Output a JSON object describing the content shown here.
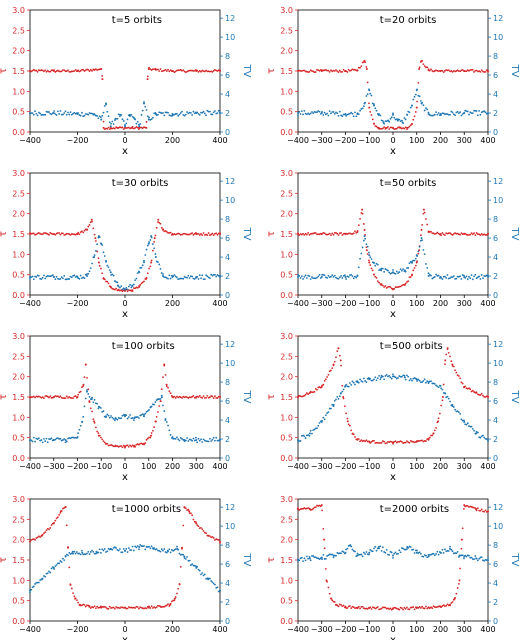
{
  "figure": {
    "left_color": "#d62728",
    "right_color": "#1f77b4",
    "left_axis_label": "τ",
    "right_axis_label": "TV"
  },
  "chart_data": [
    {
      "type": "scatter",
      "title": "t=5 orbits",
      "xlabel": "x",
      "xlim": [
        -400,
        400
      ],
      "ylim_left": [
        0,
        3
      ],
      "ylim_right": [
        0,
        12.86
      ],
      "xticks": [
        -400,
        -200,
        0,
        200,
        400
      ],
      "yticks_left": [
        0.0,
        0.5,
        1.0,
        1.5,
        2.0,
        2.5,
        3.0
      ],
      "yticks_right": [
        0,
        2,
        4,
        6,
        8,
        10,
        12
      ],
      "series": [
        {
          "axis": "left",
          "color": "#d62728",
          "x": [
            -400,
            -300,
            -200,
            -130,
            -100,
            -95,
            -90,
            -60,
            -30,
            0,
            30,
            60,
            90,
            95,
            100,
            130,
            200,
            300,
            400
          ],
          "y": [
            1.5,
            1.5,
            1.5,
            1.53,
            1.55,
            1.3,
            0.1,
            0.1,
            0.1,
            0.1,
            0.1,
            0.1,
            0.1,
            1.3,
            1.55,
            1.53,
            1.5,
            1.5,
            1.5
          ]
        },
        {
          "axis": "right",
          "color": "#1f77b4",
          "x": [
            -400,
            -300,
            -200,
            -130,
            -100,
            -80,
            -60,
            -40,
            -20,
            0,
            20,
            40,
            60,
            80,
            100,
            130,
            200,
            300,
            400
          ],
          "y": [
            2.0,
            2.0,
            1.9,
            1.9,
            1.3,
            3.0,
            0.6,
            1.4,
            1.8,
            0.6,
            1.8,
            1.4,
            0.6,
            3.0,
            1.3,
            1.9,
            1.9,
            2.0,
            2.0
          ]
        }
      ]
    },
    {
      "type": "scatter",
      "title": "t=20 orbits",
      "xlabel": "x",
      "xlim": [
        -400,
        400
      ],
      "ylim_left": [
        0,
        3
      ],
      "ylim_right": [
        0,
        12.86
      ],
      "xticks": [
        -400,
        -300,
        -200,
        -100,
        0,
        100,
        200,
        300,
        400
      ],
      "yticks_left": [
        0.0,
        0.5,
        1.0,
        1.5,
        2.0,
        2.5,
        3.0
      ],
      "yticks_right": [
        0,
        2,
        4,
        6,
        8,
        10,
        12
      ],
      "series": [
        {
          "axis": "left",
          "color": "#d62728",
          "x": [
            -400,
            -300,
            -200,
            -150,
            -120,
            -110,
            -100,
            -80,
            -60,
            -30,
            0,
            30,
            60,
            80,
            100,
            110,
            120,
            150,
            200,
            300,
            400
          ],
          "y": [
            1.5,
            1.5,
            1.5,
            1.52,
            1.75,
            1.55,
            0.6,
            0.2,
            0.1,
            0.1,
            0.1,
            0.1,
            0.1,
            0.2,
            0.6,
            1.55,
            1.75,
            1.52,
            1.5,
            1.5,
            1.5
          ]
        },
        {
          "axis": "right",
          "color": "#1f77b4",
          "x": [
            -400,
            -300,
            -200,
            -150,
            -120,
            -100,
            -80,
            -60,
            -40,
            -20,
            0,
            20,
            40,
            60,
            80,
            100,
            120,
            150,
            200,
            300,
            400
          ],
          "y": [
            2.0,
            2.0,
            1.9,
            1.9,
            3.0,
            4.4,
            2.8,
            1.8,
            1.0,
            1.2,
            1.8,
            1.2,
            1.0,
            1.8,
            2.8,
            4.4,
            3.0,
            1.9,
            1.9,
            2.0,
            2.0
          ]
        }
      ]
    },
    {
      "type": "scatter",
      "title": "t=30 orbits",
      "xlabel": "x",
      "xlim": [
        -400,
        400
      ],
      "ylim_left": [
        0,
        3
      ],
      "ylim_right": [
        0,
        12.86
      ],
      "xticks": [
        -400,
        -200,
        0,
        200,
        400
      ],
      "yticks_left": [
        0.0,
        0.5,
        1.0,
        1.5,
        2.0,
        2.5,
        3.0
      ],
      "yticks_right": [
        0,
        2,
        4,
        6,
        8,
        10,
        12
      ],
      "series": [
        {
          "axis": "left",
          "color": "#d62728",
          "x": [
            -400,
            -300,
            -200,
            -160,
            -140,
            -125,
            -110,
            -90,
            -60,
            -30,
            0,
            30,
            60,
            90,
            110,
            125,
            140,
            160,
            200,
            300,
            400
          ],
          "y": [
            1.5,
            1.5,
            1.5,
            1.6,
            1.85,
            1.4,
            0.8,
            0.4,
            0.2,
            0.12,
            0.1,
            0.12,
            0.2,
            0.4,
            0.8,
            1.4,
            1.85,
            1.6,
            1.5,
            1.5,
            1.5
          ]
        },
        {
          "axis": "right",
          "color": "#1f77b4",
          "x": [
            -400,
            -300,
            -200,
            -160,
            -130,
            -110,
            -100,
            -80,
            -60,
            -30,
            0,
            30,
            60,
            80,
            100,
            110,
            130,
            160,
            200,
            300,
            400
          ],
          "y": [
            1.9,
            1.9,
            1.9,
            2.0,
            4.0,
            6.2,
            5.4,
            3.6,
            2.4,
            1.0,
            0.6,
            1.0,
            2.4,
            3.6,
            5.4,
            6.2,
            4.0,
            2.0,
            1.9,
            1.9,
            1.9
          ]
        }
      ]
    },
    {
      "type": "scatter",
      "title": "t=50 orbits",
      "xlabel": "x",
      "xlim": [
        -400,
        400
      ],
      "ylim_left": [
        0,
        3
      ],
      "ylim_right": [
        0,
        12.86
      ],
      "xticks": [
        -400,
        -300,
        -200,
        -100,
        0,
        100,
        200,
        300,
        400
      ],
      "yticks_left": [
        0.0,
        0.5,
        1.0,
        1.5,
        2.0,
        2.5,
        3.0
      ],
      "yticks_right": [
        0,
        2,
        4,
        6,
        8,
        10,
        12
      ],
      "series": [
        {
          "axis": "left",
          "color": "#d62728",
          "x": [
            -400,
            -300,
            -200,
            -150,
            -130,
            -120,
            -110,
            -100,
            -80,
            -50,
            0,
            50,
            80,
            100,
            110,
            120,
            130,
            150,
            200,
            300,
            400
          ],
          "y": [
            1.5,
            1.5,
            1.5,
            1.55,
            2.1,
            1.6,
            1.1,
            0.8,
            0.5,
            0.25,
            0.15,
            0.25,
            0.5,
            0.8,
            1.1,
            1.6,
            2.1,
            1.55,
            1.5,
            1.5,
            1.5
          ]
        },
        {
          "axis": "right",
          "color": "#1f77b4",
          "x": [
            -400,
            -300,
            -200,
            -150,
            -120,
            -100,
            -80,
            -50,
            0,
            50,
            80,
            100,
            120,
            150,
            200,
            300,
            400
          ],
          "y": [
            1.9,
            1.9,
            1.9,
            2.0,
            6.2,
            4.2,
            3.4,
            2.6,
            2.4,
            2.6,
            3.4,
            4.2,
            6.0,
            2.0,
            1.9,
            1.9,
            1.9
          ]
        }
      ]
    },
    {
      "type": "scatter",
      "title": "t=100 orbits",
      "xlabel": "x",
      "xlim": [
        -400,
        400
      ],
      "ylim_left": [
        0,
        3
      ],
      "ylim_right": [
        0,
        12.86
      ],
      "xticks": [
        -400,
        -300,
        -200,
        -100,
        0,
        100,
        200,
        300,
        400
      ],
      "yticks_left": [
        0.0,
        0.5,
        1.0,
        1.5,
        2.0,
        2.5,
        3.0
      ],
      "yticks_right": [
        0,
        2,
        4,
        6,
        8,
        10,
        12
      ],
      "series": [
        {
          "axis": "left",
          "color": "#d62728",
          "x": [
            -400,
            -300,
            -200,
            -175,
            -165,
            -150,
            -130,
            -110,
            -80,
            -40,
            0,
            40,
            80,
            110,
            130,
            150,
            165,
            175,
            200,
            300,
            400
          ],
          "y": [
            1.5,
            1.5,
            1.5,
            1.8,
            2.3,
            1.4,
            0.9,
            0.55,
            0.35,
            0.3,
            0.28,
            0.3,
            0.35,
            0.55,
            0.9,
            1.4,
            2.3,
            1.8,
            1.5,
            1.5,
            1.5
          ]
        },
        {
          "axis": "right",
          "color": "#1f77b4",
          "x": [
            -400,
            -300,
            -250,
            -200,
            -180,
            -160,
            -140,
            -110,
            -80,
            -40,
            0,
            40,
            80,
            110,
            140,
            155,
            170,
            200,
            250,
            300,
            400
          ],
          "y": [
            1.9,
            1.9,
            1.9,
            2.2,
            3.8,
            7.0,
            6.2,
            5.4,
            4.4,
            4.2,
            4.4,
            4.2,
            4.4,
            5.4,
            6.2,
            6.4,
            4.0,
            2.2,
            1.9,
            1.9,
            1.9
          ]
        }
      ]
    },
    {
      "type": "scatter",
      "title": "t=500 orbits",
      "xlabel": "x",
      "xlim": [
        -400,
        400
      ],
      "ylim_left": [
        0,
        3
      ],
      "ylim_right": [
        0,
        12.86
      ],
      "xticks": [
        -400,
        -300,
        -200,
        -100,
        0,
        100,
        200,
        300,
        400
      ],
      "yticks_left": [
        0.0,
        0.5,
        1.0,
        1.5,
        2.0,
        2.5,
        3.0
      ],
      "yticks_right": [
        0,
        2,
        4,
        6,
        8,
        10,
        12
      ],
      "series": [
        {
          "axis": "left",
          "color": "#d62728",
          "x": [
            -400,
            -350,
            -300,
            -250,
            -230,
            -220,
            -210,
            -190,
            -170,
            -150,
            -100,
            0,
            100,
            150,
            170,
            190,
            210,
            220,
            230,
            250,
            300,
            350,
            400
          ],
          "y": [
            1.5,
            1.6,
            1.75,
            2.3,
            2.7,
            2.4,
            1.5,
            0.9,
            0.6,
            0.45,
            0.4,
            0.38,
            0.4,
            0.45,
            0.6,
            0.9,
            1.5,
            2.4,
            2.7,
            2.3,
            1.75,
            1.6,
            1.5
          ]
        },
        {
          "axis": "right",
          "color": "#1f77b4",
          "x": [
            -400,
            -350,
            -300,
            -250,
            -220,
            -200,
            -150,
            -100,
            -50,
            0,
            50,
            100,
            150,
            200,
            220,
            250,
            300,
            350,
            400
          ],
          "y": [
            1.9,
            2.6,
            3.8,
            5.6,
            6.8,
            7.6,
            8.0,
            8.3,
            8.5,
            8.6,
            8.5,
            8.3,
            8.0,
            7.6,
            6.8,
            5.6,
            3.8,
            2.6,
            1.9
          ]
        }
      ]
    },
    {
      "type": "scatter",
      "title": "t=1000 orbits",
      "xlabel": "x",
      "xlim": [
        -400,
        400
      ],
      "ylim_left": [
        0,
        3
      ],
      "ylim_right": [
        0,
        12.86
      ],
      "xticks": [
        -400,
        -200,
        0,
        200,
        400
      ],
      "yticks_left": [
        0.0,
        0.5,
        1.0,
        1.5,
        2.0,
        2.5,
        3.0
      ],
      "yticks_right": [
        0,
        2,
        4,
        6,
        8,
        10,
        12
      ],
      "series": [
        {
          "axis": "left",
          "color": "#d62728",
          "x": [
            -400,
            -350,
            -300,
            -270,
            -250,
            -240,
            -230,
            -210,
            -190,
            -150,
            -100,
            0,
            100,
            150,
            190,
            210,
            230,
            240,
            250,
            270,
            300,
            350,
            400
          ],
          "y": [
            1.95,
            2.1,
            2.4,
            2.7,
            2.8,
            1.8,
            0.9,
            0.55,
            0.4,
            0.35,
            0.33,
            0.33,
            0.33,
            0.35,
            0.4,
            0.55,
            0.9,
            1.8,
            2.8,
            2.7,
            2.4,
            2.1,
            1.95
          ]
        },
        {
          "axis": "right",
          "color": "#1f77b4",
          "x": [
            -400,
            -350,
            -300,
            -250,
            -220,
            -180,
            -120,
            -60,
            0,
            60,
            120,
            180,
            220,
            250,
            300,
            350,
            400
          ],
          "y": [
            3.2,
            4.4,
            5.6,
            6.8,
            7.3,
            7.2,
            7.3,
            7.6,
            7.4,
            7.8,
            7.6,
            7.4,
            7.6,
            6.8,
            5.6,
            4.4,
            3.2
          ]
        }
      ]
    },
    {
      "type": "scatter",
      "title": "t=2000 orbits",
      "xlabel": "x",
      "xlim": [
        -400,
        400
      ],
      "ylim_left": [
        0,
        3
      ],
      "ylim_right": [
        0,
        12.86
      ],
      "xticks": [
        -400,
        -300,
        -200,
        -100,
        0,
        100,
        200,
        300,
        400
      ],
      "yticks_left": [
        0.0,
        0.5,
        1.0,
        1.5,
        2.0,
        2.5,
        3.0
      ],
      "yticks_right": [
        0,
        2,
        4,
        6,
        8,
        10,
        12
      ],
      "series": [
        {
          "axis": "left",
          "color": "#d62728",
          "x": [
            -400,
            -350,
            -300,
            -290,
            -280,
            -260,
            -240,
            -200,
            -150,
            -100,
            0,
            100,
            150,
            200,
            240,
            260,
            280,
            290,
            300,
            350,
            400
          ],
          "y": [
            2.75,
            2.75,
            2.85,
            2.0,
            1.0,
            0.55,
            0.4,
            0.35,
            0.33,
            0.32,
            0.3,
            0.32,
            0.33,
            0.35,
            0.4,
            0.55,
            1.0,
            2.0,
            2.85,
            2.75,
            2.7
          ]
        },
        {
          "axis": "right",
          "color": "#1f77b4",
          "x": [
            -400,
            -350,
            -300,
            -250,
            -200,
            -180,
            -150,
            -100,
            -60,
            0,
            60,
            100,
            150,
            200,
            240,
            280,
            300,
            350,
            400
          ],
          "y": [
            6.5,
            6.6,
            6.7,
            6.9,
            7.2,
            8.0,
            6.9,
            7.2,
            7.8,
            6.9,
            7.8,
            7.2,
            6.8,
            7.2,
            7.6,
            6.9,
            6.8,
            6.6,
            6.4
          ]
        }
      ]
    }
  ]
}
